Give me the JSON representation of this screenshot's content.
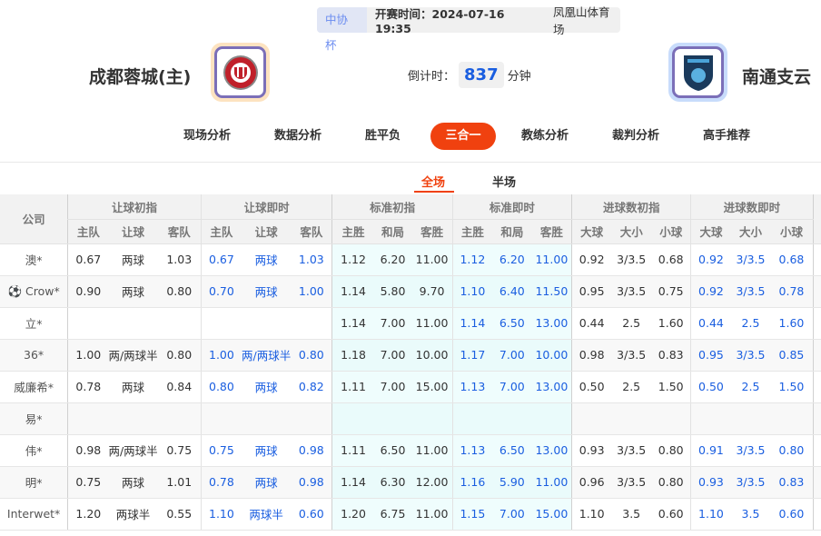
{
  "match": {
    "cup": "中协杯",
    "time": "开赛时间：2024-07-16 19:35",
    "venue": "凤凰山体育场",
    "home": "成都蓉城(主)",
    "away": "南通支云",
    "countdown_label": "倒计时：",
    "countdown_value": "837",
    "countdown_unit": "分钟",
    "home_logo_color": "#c0202a",
    "away_logo_color": "#1a3a5c"
  },
  "nav": [
    "现场分析",
    "数据分析",
    "胜平负",
    "三合一",
    "教练分析",
    "裁判分析",
    "高手推荐"
  ],
  "nav_active": 3,
  "subtabs": [
    "全场",
    "半场"
  ],
  "table": {
    "company_header": "公司",
    "groups": [
      "让球初指",
      "让球即时",
      "标准初指",
      "标准即时",
      "进球数初指",
      "进球数即时"
    ],
    "subheaders": [
      [
        "主队",
        "让球",
        "客队"
      ],
      [
        "主队",
        "让球",
        "客队"
      ],
      [
        "主胜",
        "和局",
        "客胜"
      ],
      [
        "主胜",
        "和局",
        "客胜"
      ],
      [
        "大球",
        "大小",
        "小球"
      ],
      [
        "大球",
        "大小",
        "小球"
      ]
    ],
    "rows": [
      {
        "company": "澳*",
        "cells": [
          "0.67",
          "两球",
          "1.03",
          "0.67",
          "两球",
          "1.03",
          "1.12",
          "6.20",
          "11.00",
          "1.12",
          "6.20",
          "11.00",
          "0.92",
          "3/3.5",
          "0.68",
          "0.92",
          "3/3.5",
          "0.68"
        ]
      },
      {
        "company": "Crow*",
        "icon": "soccer-ball",
        "cells": [
          "0.90",
          "两球",
          "0.80",
          "0.70",
          "两球",
          "1.00",
          "1.14",
          "5.80",
          "9.70",
          "1.10",
          "6.40",
          "11.50",
          "0.95",
          "3/3.5",
          "0.75",
          "0.92",
          "3/3.5",
          "0.78"
        ]
      },
      {
        "company": "立*",
        "cells": [
          "",
          "",
          "",
          "",
          "",
          "",
          "1.14",
          "7.00",
          "11.00",
          "1.14",
          "6.50",
          "13.00",
          "0.44",
          "2.5",
          "1.60",
          "0.44",
          "2.5",
          "1.60"
        ]
      },
      {
        "company": "36*",
        "cells": [
          "1.00",
          "两/两球半",
          "0.80",
          "1.00",
          "两/两球半",
          "0.80",
          "1.18",
          "7.00",
          "10.00",
          "1.17",
          "7.00",
          "10.00",
          "0.98",
          "3/3.5",
          "0.83",
          "0.95",
          "3/3.5",
          "0.85"
        ]
      },
      {
        "company": "威廉希*",
        "cells": [
          "0.78",
          "两球",
          "0.84",
          "0.80",
          "两球",
          "0.82",
          "1.11",
          "7.00",
          "15.00",
          "1.13",
          "7.00",
          "13.00",
          "0.50",
          "2.5",
          "1.50",
          "0.50",
          "2.5",
          "1.50"
        ]
      },
      {
        "company": "易*",
        "cells": [
          "",
          "",
          "",
          "",
          "",
          "",
          "",
          "",
          "",
          "",
          "",
          "",
          "",
          "",
          "",
          "",
          "",
          ""
        ]
      },
      {
        "company": "伟*",
        "cells": [
          "0.98",
          "两/两球半",
          "0.75",
          "0.75",
          "两球",
          "0.98",
          "1.11",
          "6.50",
          "11.00",
          "1.13",
          "6.50",
          "13.00",
          "0.93",
          "3/3.5",
          "0.80",
          "0.91",
          "3/3.5",
          "0.80"
        ]
      },
      {
        "company": "明*",
        "cells": [
          "0.75",
          "两球",
          "1.01",
          "0.78",
          "两球",
          "0.98",
          "1.14",
          "6.30",
          "12.00",
          "1.16",
          "5.90",
          "11.00",
          "0.96",
          "3/3.5",
          "0.80",
          "0.93",
          "3/3.5",
          "0.83"
        ]
      },
      {
        "company": "Interwet*",
        "cells": [
          "1.20",
          "两球半",
          "0.55",
          "1.10",
          "两球半",
          "0.60",
          "1.20",
          "6.75",
          "11.00",
          "1.15",
          "7.00",
          "15.00",
          "1.10",
          "3.5",
          "0.60",
          "1.10",
          "3.5",
          "0.60"
        ]
      }
    ]
  }
}
